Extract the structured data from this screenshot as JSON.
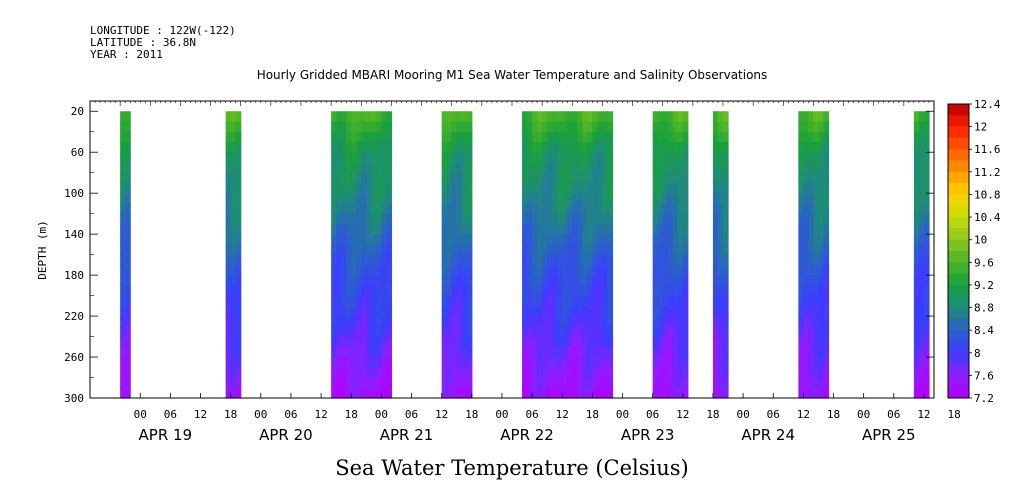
{
  "header": {
    "longitude": "LONGITUDE : 122W(-122)",
    "latitude": "LATITUDE : 36.8N",
    "year": "YEAR : 2011"
  },
  "chart_data": {
    "type": "heatmap",
    "title": "Hourly Gridded MBARI Mooring M1 Sea Water Temperature and Salinity Observations",
    "xlabel": "Sea Water Temperature (Celsius)",
    "ylabel": "DEPTH (m)",
    "ylim": [
      300,
      10
    ],
    "y_ticks": [
      20,
      60,
      100,
      140,
      180,
      220,
      260,
      300
    ],
    "x_hour_ticks": [
      "00",
      "06",
      "12",
      "18",
      "00",
      "06",
      "12",
      "18",
      "00",
      "06",
      "12",
      "18",
      "00",
      "06",
      "12",
      "18",
      "00",
      "06",
      "12",
      "18",
      "00",
      "06",
      "12",
      "18",
      "00",
      "06",
      "12",
      "18"
    ],
    "x_day_labels": [
      "APR 19",
      "APR 20",
      "APR 21",
      "APR 22",
      "APR 23",
      "APR 24",
      "APR 25"
    ],
    "colorbar_labels": [
      "12.4",
      "12",
      "11.6",
      "11.2",
      "10.8",
      "10.4",
      "10",
      "9.6",
      "9.2",
      "8.8",
      "8.4",
      "8",
      "7.6",
      "7.2"
    ],
    "colorbar_range": [
      7.2,
      12.4
    ],
    "data_segments_hours_since_apr19_00": [
      [
        6,
        8
      ],
      [
        27,
        30
      ],
      [
        48,
        60
      ],
      [
        70,
        76
      ],
      [
        86,
        104
      ],
      [
        112,
        119
      ],
      [
        124,
        127
      ],
      [
        141,
        147
      ],
      [
        164,
        167
      ]
    ],
    "approx_profile": {
      "depth": [
        20,
        60,
        100,
        140,
        180,
        220,
        260,
        300
      ],
      "temperature": [
        9.6,
        9.0,
        8.8,
        8.5,
        8.2,
        8.0,
        7.7,
        7.4
      ]
    }
  }
}
